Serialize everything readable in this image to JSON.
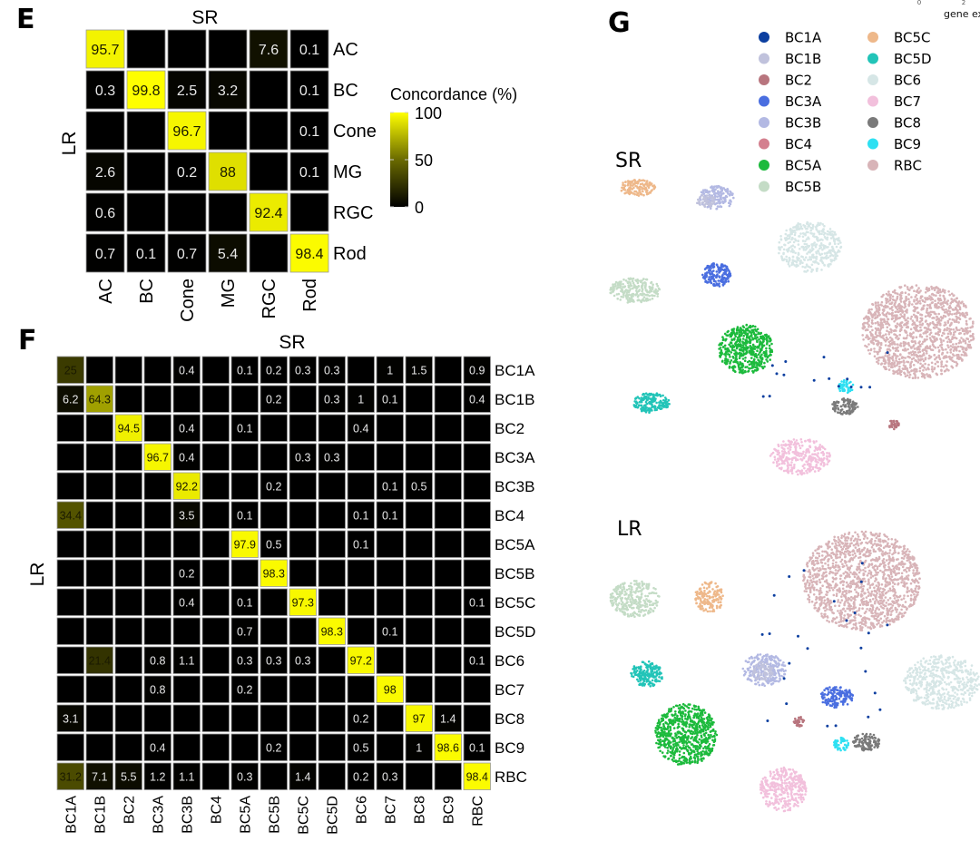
{
  "panels": {
    "E": "E",
    "F": "F",
    "G": "G"
  },
  "chart_data": [
    {
      "id": "E",
      "type": "heatmap",
      "title": "",
      "xlabel": "SR",
      "ylabel": "LR",
      "x_categories": [
        "AC",
        "BC",
        "Cone",
        "MG",
        "RGC",
        "Rod"
      ],
      "y_categories": [
        "AC",
        "BC",
        "Cone",
        "MG",
        "RGC",
        "Rod"
      ],
      "values": [
        [
          95.7,
          null,
          null,
          null,
          7.6,
          0.1
        ],
        [
          0.3,
          99.8,
          2.5,
          3.2,
          null,
          0.1
        ],
        [
          null,
          null,
          96.7,
          null,
          null,
          0.1
        ],
        [
          2.6,
          null,
          0.2,
          88,
          null,
          0.1
        ],
        [
          0.6,
          null,
          null,
          null,
          92.4,
          null
        ],
        [
          0.7,
          0.1,
          0.7,
          5.4,
          null,
          98.4
        ]
      ],
      "colorbar": {
        "title": "Concordance (%)",
        "ticks": [
          0,
          50,
          100
        ],
        "range": [
          0,
          100
        ],
        "low_color": "#000000",
        "high_color": "#ffff00"
      }
    },
    {
      "id": "F",
      "type": "heatmap",
      "xlabel": "SR",
      "ylabel": "LR",
      "x_categories": [
        "BC1A",
        "BC1B",
        "BC2",
        "BC3A",
        "BC3B",
        "BC4",
        "BC5A",
        "BC5B",
        "BC5C",
        "BC5D",
        "BC6",
        "BC7",
        "BC8",
        "BC9",
        "RBC"
      ],
      "y_categories": [
        "BC1A",
        "BC1B",
        "BC2",
        "BC3A",
        "BC3B",
        "BC4",
        "BC5A",
        "BC5B",
        "BC5C",
        "BC5D",
        "BC6",
        "BC7",
        "BC8",
        "BC9",
        "RBC"
      ],
      "values": [
        [
          25,
          null,
          null,
          null,
          0.4,
          null,
          0.1,
          0.2,
          0.3,
          0.3,
          null,
          1,
          1.5,
          null,
          0.9
        ],
        [
          6.2,
          64.3,
          null,
          null,
          null,
          null,
          null,
          0.2,
          null,
          0.3,
          1,
          0.1,
          null,
          null,
          0.4
        ],
        [
          null,
          null,
          94.5,
          null,
          0.4,
          null,
          0.1,
          null,
          null,
          null,
          0.4,
          null,
          null,
          null,
          null
        ],
        [
          null,
          null,
          null,
          96.7,
          0.4,
          null,
          null,
          null,
          0.3,
          0.3,
          null,
          null,
          null,
          null,
          null
        ],
        [
          null,
          null,
          null,
          null,
          92.2,
          null,
          null,
          0.2,
          null,
          null,
          null,
          0.1,
          0.5,
          null,
          null
        ],
        [
          34.4,
          null,
          null,
          null,
          3.5,
          null,
          0.1,
          null,
          null,
          null,
          0.1,
          0.1,
          null,
          null,
          null
        ],
        [
          null,
          null,
          null,
          null,
          null,
          null,
          97.9,
          0.5,
          null,
          null,
          0.1,
          null,
          null,
          null,
          null
        ],
        [
          null,
          null,
          null,
          null,
          0.2,
          null,
          null,
          98.3,
          null,
          null,
          null,
          null,
          null,
          null,
          null
        ],
        [
          null,
          null,
          null,
          null,
          0.4,
          null,
          0.1,
          null,
          97.3,
          null,
          null,
          null,
          null,
          null,
          0.1
        ],
        [
          null,
          null,
          null,
          null,
          null,
          null,
          0.7,
          null,
          null,
          98.3,
          null,
          0.1,
          null,
          null,
          null
        ],
        [
          null,
          21.4,
          null,
          0.8,
          1.1,
          null,
          0.3,
          0.3,
          0.3,
          null,
          97.2,
          null,
          null,
          null,
          0.1
        ],
        [
          null,
          null,
          null,
          0.8,
          null,
          null,
          0.2,
          null,
          null,
          null,
          null,
          98,
          null,
          null,
          null
        ],
        [
          3.1,
          null,
          null,
          null,
          null,
          null,
          null,
          null,
          null,
          null,
          0.2,
          null,
          97,
          1.4,
          null
        ],
        [
          null,
          null,
          null,
          0.4,
          null,
          null,
          null,
          0.2,
          null,
          null,
          0.5,
          null,
          1,
          98.6,
          0.1
        ],
        [
          31.2,
          7.1,
          5.5,
          1.2,
          1.1,
          null,
          0.3,
          null,
          1.4,
          null,
          0.2,
          0.3,
          null,
          null,
          98.4
        ]
      ]
    },
    {
      "id": "G",
      "type": "scatter",
      "description": "UMAP embeddings of bipolar cell clusters",
      "subplots": [
        "SR",
        "LR"
      ],
      "legend": [
        {
          "label": "BC1A",
          "color": "#0c3fa0"
        },
        {
          "label": "BC1B",
          "color": "#c0c2dc"
        },
        {
          "label": "BC2",
          "color": "#b8757e"
        },
        {
          "label": "BC3A",
          "color": "#4a6ee0"
        },
        {
          "label": "BC3B",
          "color": "#b3b9e3"
        },
        {
          "label": "BC4",
          "color": "#d4808f"
        },
        {
          "label": "BC5A",
          "color": "#1cba3c"
        },
        {
          "label": "BC5B",
          "color": "#c4dcc6"
        },
        {
          "label": "BC5C",
          "color": "#eeb88a"
        },
        {
          "label": "BC5D",
          "color": "#22c4b8"
        },
        {
          "label": "BC6",
          "color": "#d6e6e6"
        },
        {
          "label": "BC7",
          "color": "#f2c0dc"
        },
        {
          "label": "BC8",
          "color": "#7a7a7a"
        },
        {
          "label": "BC9",
          "color": "#2ee0f2"
        },
        {
          "label": "RBC",
          "color": "#d8b4b8"
        }
      ],
      "corner_text": {
        "ticks": [
          "0",
          "2"
        ],
        "label": "gene ex"
      }
    }
  ]
}
